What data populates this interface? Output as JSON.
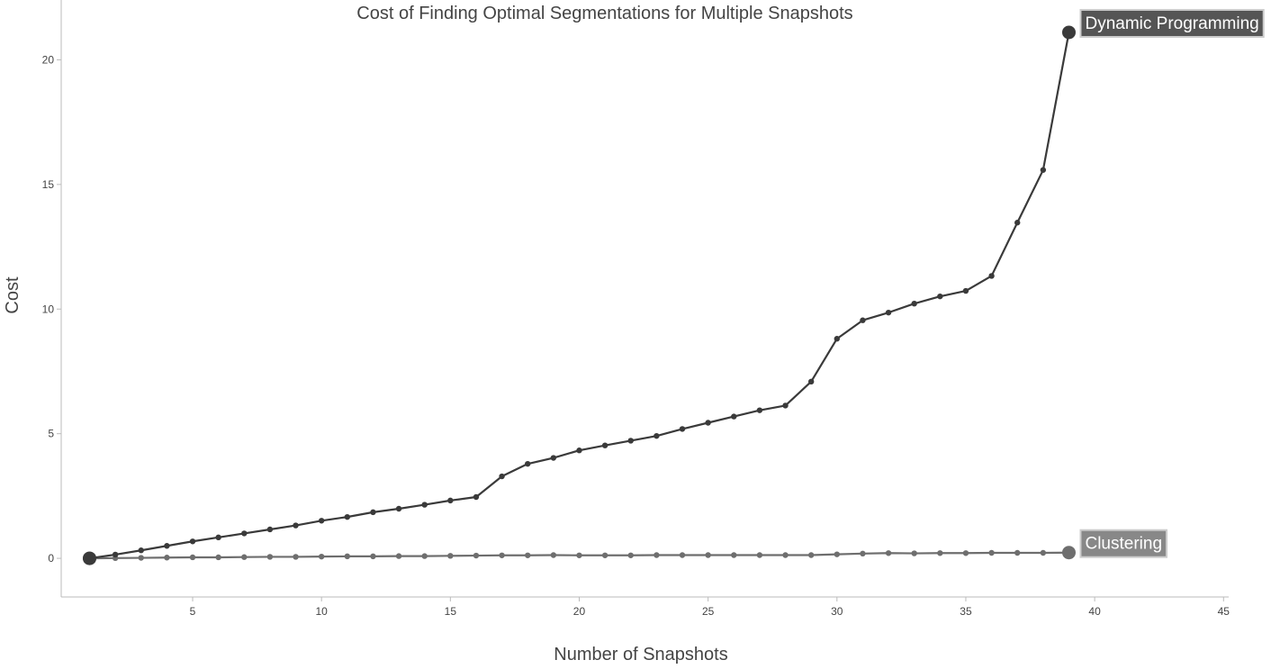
{
  "chart_data": {
    "type": "line",
    "title": "Cost of Finding Optimal Segmentations for Multiple Snapshots",
    "xlabel": "Number of Snapshots",
    "ylabel": "Cost",
    "xlim": [
      -0.1,
      45.2
    ],
    "ylim": [
      -1.55,
      22.4
    ],
    "xticks": [
      5,
      10,
      15,
      20,
      25,
      30,
      35,
      40,
      45
    ],
    "yticks": [
      0,
      5,
      10,
      15,
      20
    ],
    "grid": false,
    "legend": "end-of-line labels",
    "x": [
      1,
      2,
      3,
      4,
      5,
      6,
      7,
      8,
      9,
      10,
      11,
      12,
      13,
      14,
      15,
      16,
      17,
      18,
      19,
      20,
      21,
      22,
      23,
      24,
      25,
      26,
      27,
      28,
      29,
      30,
      31,
      32,
      33,
      34,
      35,
      36,
      37,
      38,
      39
    ],
    "series": [
      {
        "name": "Dynamic Programming",
        "color": "#3a3a3a",
        "label_bg": "#555555",
        "values": [
          0.0,
          0.15,
          0.32,
          0.5,
          0.68,
          0.84,
          1.0,
          1.16,
          1.32,
          1.51,
          1.66,
          1.85,
          1.99,
          2.15,
          2.32,
          2.46,
          3.29,
          3.79,
          4.03,
          4.33,
          4.53,
          4.72,
          4.91,
          5.19,
          5.44,
          5.69,
          5.94,
          6.13,
          7.09,
          8.81,
          9.55,
          9.86,
          10.22,
          10.51,
          10.73,
          11.33,
          13.47,
          15.58,
          21.1
        ]
      },
      {
        "name": "Clustering",
        "color": "#6e6e6e",
        "label_bg": "#888888",
        "values": [
          0.0,
          0.01,
          0.02,
          0.03,
          0.04,
          0.04,
          0.05,
          0.06,
          0.06,
          0.07,
          0.08,
          0.08,
          0.09,
          0.09,
          0.1,
          0.11,
          0.12,
          0.12,
          0.13,
          0.12,
          0.12,
          0.12,
          0.13,
          0.13,
          0.13,
          0.13,
          0.13,
          0.13,
          0.13,
          0.16,
          0.19,
          0.21,
          0.2,
          0.21,
          0.21,
          0.22,
          0.22,
          0.22,
          0.23
        ]
      }
    ]
  }
}
